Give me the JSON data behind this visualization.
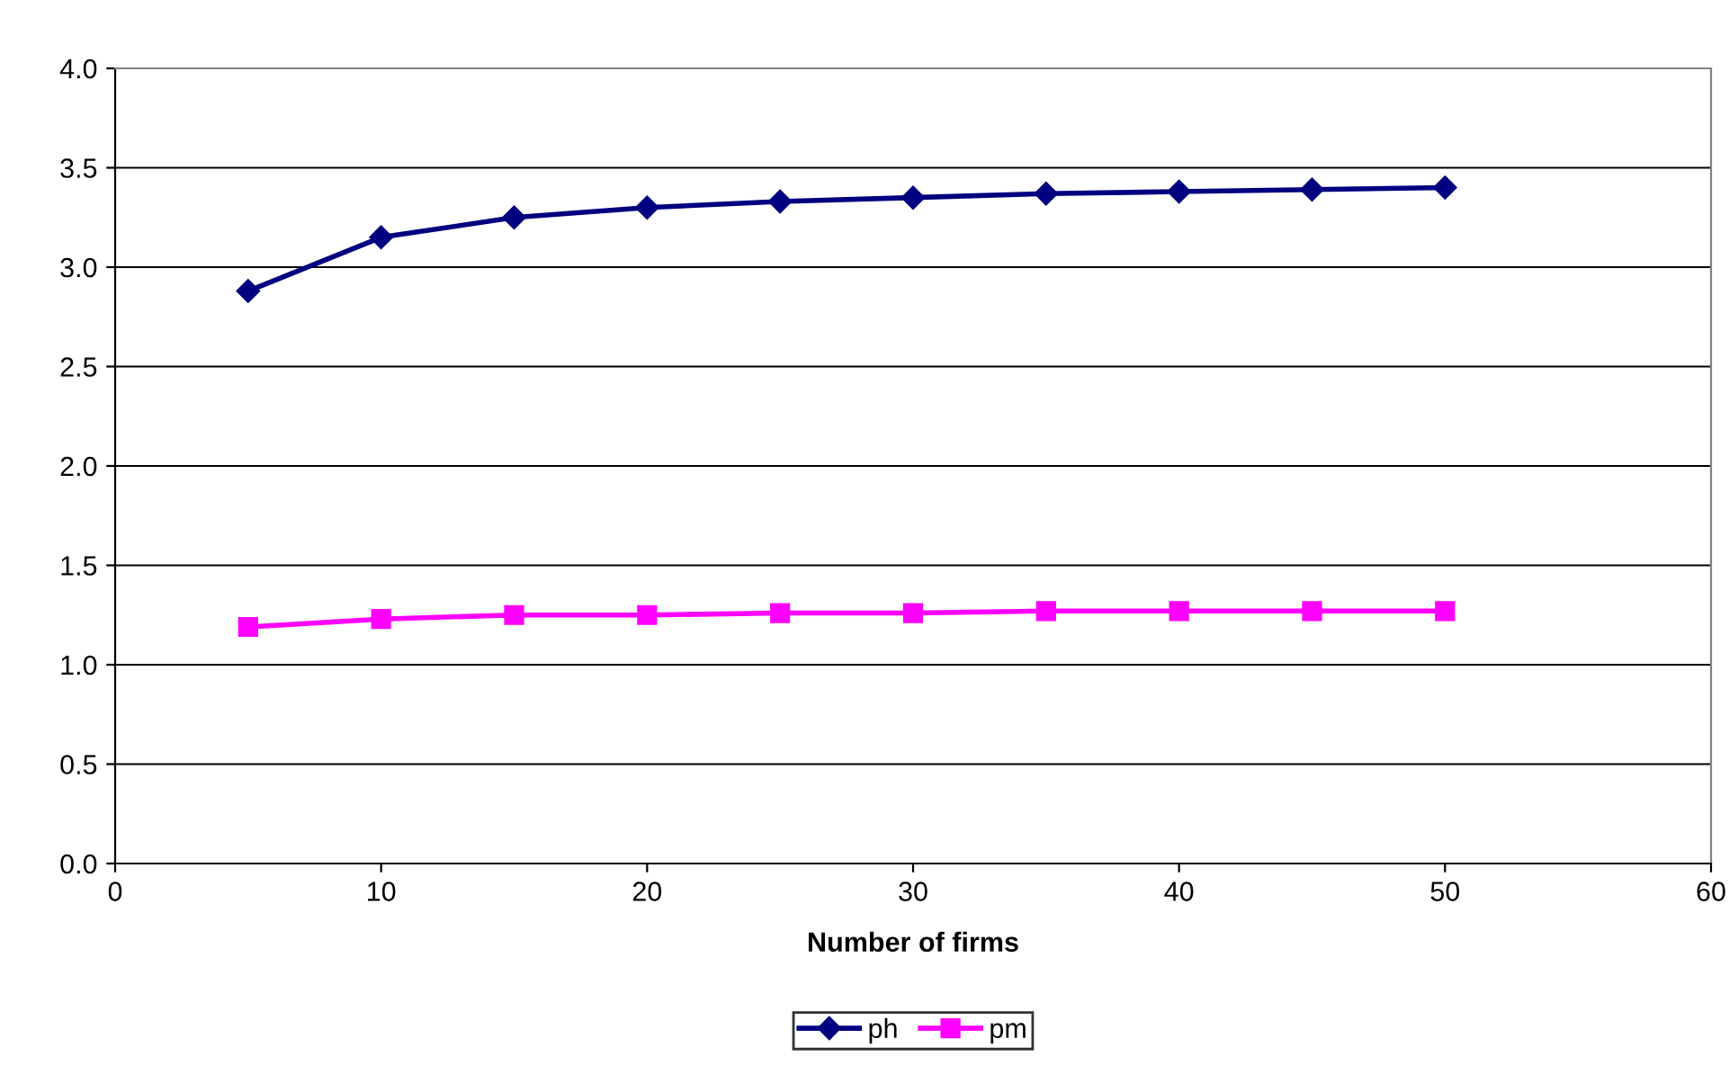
{
  "chart_data": {
    "type": "line",
    "xlabel": "Number of firms",
    "x": [
      5,
      10,
      15,
      20,
      25,
      30,
      35,
      40,
      45,
      50
    ],
    "series": [
      {
        "name": "ph",
        "color": "#000080",
        "marker": "diamond",
        "values": [
          2.88,
          3.15,
          3.25,
          3.3,
          3.33,
          3.35,
          3.37,
          3.38,
          3.39,
          3.4
        ]
      },
      {
        "name": "pm",
        "color": "#ff00ff",
        "marker": "square",
        "values": [
          1.19,
          1.23,
          1.25,
          1.25,
          1.26,
          1.26,
          1.27,
          1.27,
          1.27,
          1.27
        ]
      }
    ],
    "xlim": [
      0,
      60
    ],
    "xticks": [
      0,
      10,
      20,
      30,
      40,
      50,
      60
    ],
    "ylim": [
      0,
      4
    ],
    "yticks": [
      {
        "value": 0,
        "label": "0.0"
      },
      {
        "value": 0.5,
        "label": "0.5"
      },
      {
        "value": 1,
        "label": "1.0"
      },
      {
        "value": 1.5,
        "label": "1.5"
      },
      {
        "value": 2,
        "label": "2.0"
      },
      {
        "value": 2.5,
        "label": "2.5"
      },
      {
        "value": 3,
        "label": "3.0"
      },
      {
        "value": 3.5,
        "label": "3.5"
      },
      {
        "value": 4,
        "label": "4.0"
      }
    ],
    "grid": "y",
    "legend": "bottom",
    "line_style": "solid"
  }
}
